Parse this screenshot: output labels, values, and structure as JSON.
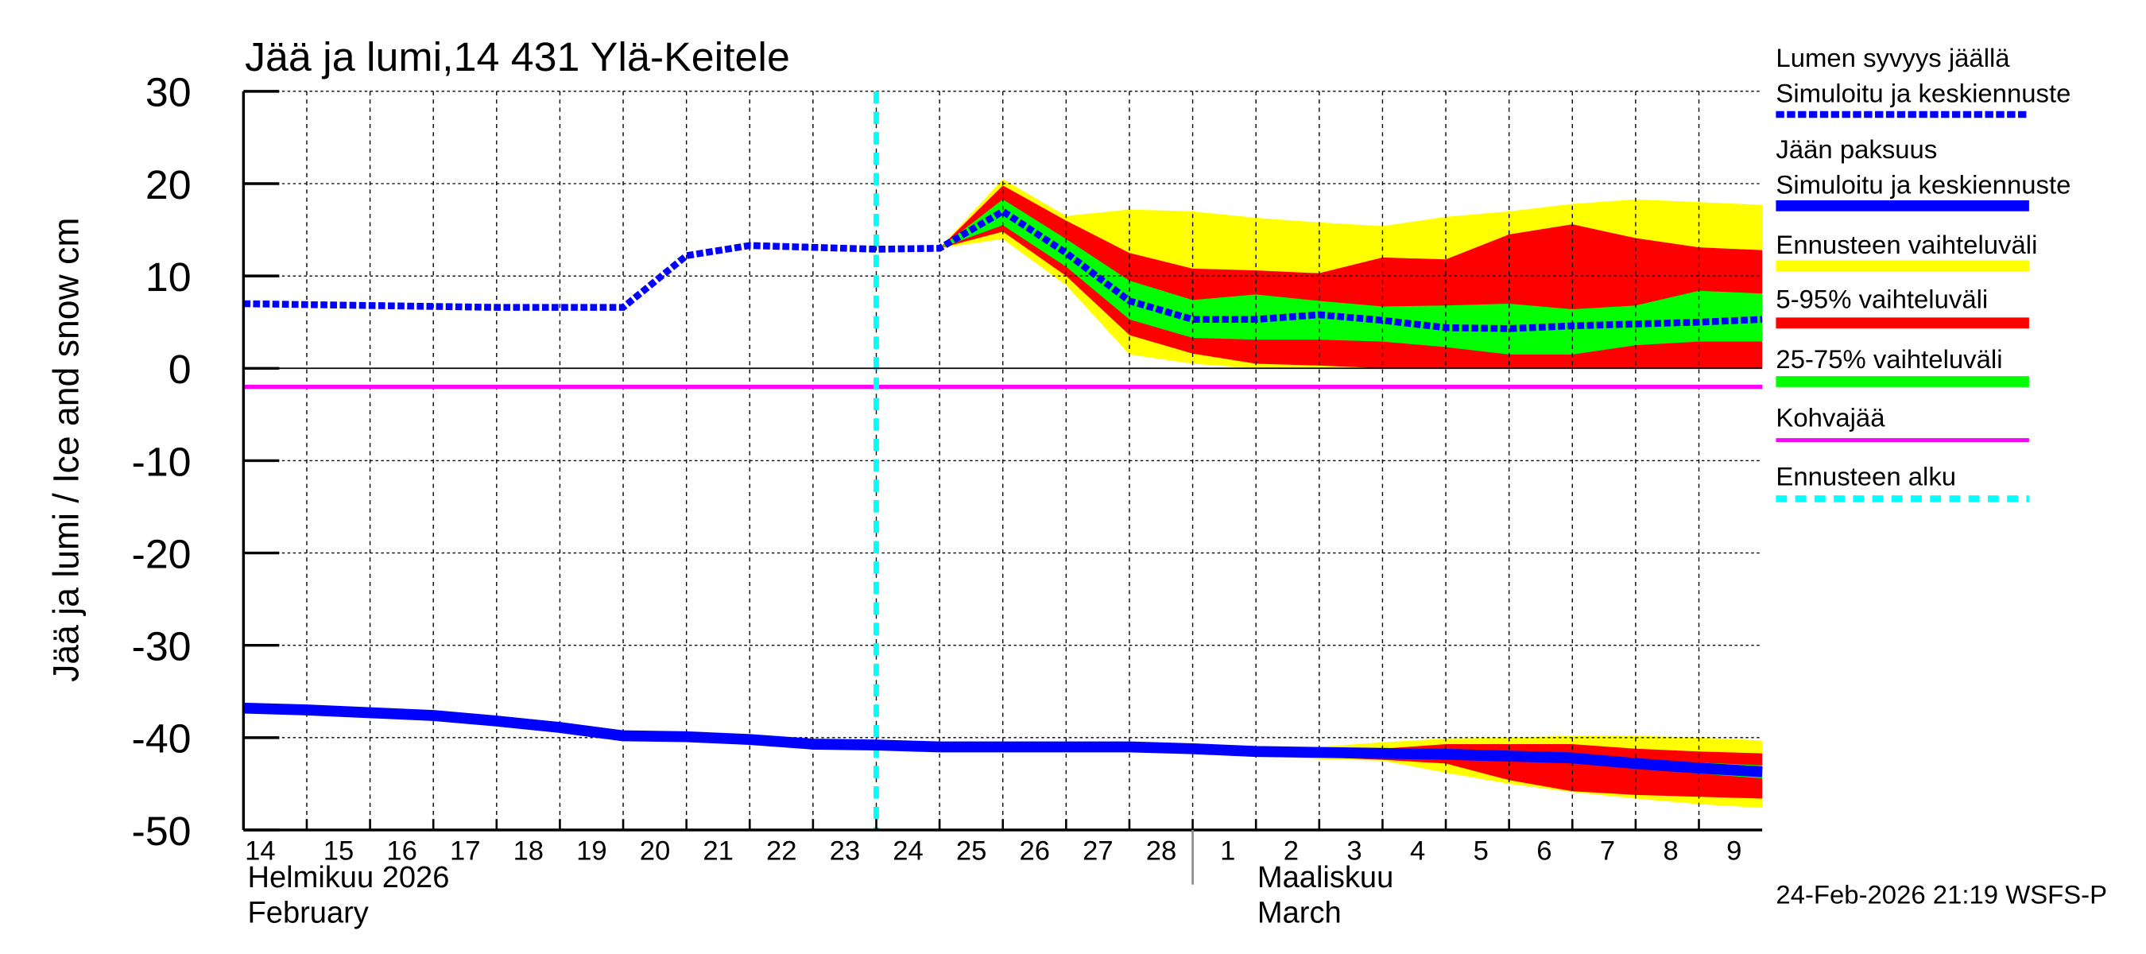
{
  "chart_data": {
    "type": "line",
    "title": "Jää ja lumi,14 431 Ylä-Keitele",
    "ylabel": "Jää ja lumi / Ice and snow    cm",
    "ylim": [
      -50,
      30
    ],
    "yticks": [
      "30",
      "20",
      "10",
      "0",
      "-10",
      "-20",
      "-30",
      "-40",
      "-50"
    ],
    "grid": true,
    "legend_position": "right",
    "x_labels": [
      "14",
      "15",
      "16",
      "17",
      "18",
      "19",
      "20",
      "21",
      "22",
      "23",
      "24",
      "25",
      "26",
      "27",
      "28",
      "1",
      "2",
      "3",
      "4",
      "5",
      "6",
      "7",
      "8",
      "9"
    ],
    "x_dates": [
      "2026-02-14",
      "2026-02-15",
      "2026-02-16",
      "2026-02-17",
      "2026-02-18",
      "2026-02-19",
      "2026-02-20",
      "2026-02-21",
      "2026-02-22",
      "2026-02-23",
      "2026-02-24",
      "2026-02-25",
      "2026-02-26",
      "2026-02-27",
      "2026-02-28",
      "2026-03-01",
      "2026-03-02",
      "2026-03-03",
      "2026-03-04",
      "2026-03-05",
      "2026-03-06",
      "2026-03-07",
      "2026-03-08",
      "2026-03-09",
      "2026-03-10"
    ],
    "month_labels": [
      {
        "fi": "Helmikuu  2026",
        "en": "February"
      },
      {
        "fi": "Maaliskuu",
        "en": "March"
      }
    ],
    "forecast_start": "2026-02-24",
    "kohvajaa_level": -2,
    "snow_depth": [
      7,
      6.9,
      6.8,
      6.7,
      6.6,
      6.6,
      6.6,
      12.2,
      13.3,
      13.1,
      12.9,
      13,
      17,
      12.5,
      7.3,
      5.3,
      5.3,
      5.8,
      5.2,
      4.4,
      4.3,
      4.6,
      4.8,
      5,
      5.3
    ],
    "ice_thickness": [
      -36.8,
      -37,
      -37.3,
      -37.6,
      -38.2,
      -38.9,
      -39.8,
      -39.9,
      -40.2,
      -40.7,
      -40.8,
      -41,
      -41,
      -41,
      -41,
      -41.2,
      -41.5,
      -41.6,
      -41.7,
      -41.8,
      -42,
      -42.2,
      -42.8,
      -43.3,
      -43.7
    ],
    "snow_bands": {
      "start": "2026-02-25",
      "range_max": [
        13,
        20.5,
        16.5,
        17.2,
        17,
        16.3,
        15.8,
        15.4,
        16.4,
        17,
        17.8,
        18.3,
        18,
        17.7
      ],
      "range_min": [
        13,
        14,
        9,
        1.5,
        0.5,
        0,
        0,
        0,
        0,
        0,
        0,
        0,
        0,
        0
      ],
      "p95": [
        13,
        19.8,
        16,
        12.5,
        10.8,
        10.6,
        10.3,
        12,
        11.8,
        14.5,
        15.6,
        14.1,
        13.1,
        12.8
      ],
      "p5": [
        13,
        14.8,
        10,
        3.6,
        1.6,
        0.5,
        0.3,
        0,
        0,
        0,
        0,
        0,
        0,
        0
      ],
      "p75": [
        13,
        18.3,
        14,
        9.5,
        7.4,
        8,
        7.3,
        6.7,
        6.8,
        7,
        6.4,
        6.8,
        8.4,
        8.1
      ],
      "p25": [
        13,
        15.5,
        11,
        5.3,
        3.3,
        3.1,
        3.1,
        2.9,
        2.3,
        1.5,
        1.5,
        2.5,
        2.9,
        2.9
      ]
    },
    "ice_bands": {
      "start": "2026-02-28",
      "range_max": [
        -41,
        -41.2,
        -41.3,
        -41,
        -40.5,
        -40.1,
        -40,
        -39.8,
        -39.8,
        -40,
        -40.3
      ],
      "range_min": [
        -41,
        -41.4,
        -42,
        -42.3,
        -42.5,
        -43.8,
        -45,
        -45.9,
        -46.6,
        -47.2,
        -47.6
      ],
      "p95": [
        -41,
        -41.2,
        -41.4,
        -41.5,
        -41.2,
        -40.7,
        -40.7,
        -40.7,
        -41.2,
        -41.5,
        -41.7
      ],
      "p5": [
        -41,
        -41.3,
        -41.9,
        -42.1,
        -42.4,
        -42.8,
        -44.6,
        -45.8,
        -46.2,
        -46.4,
        -46.6
      ],
      "p75": [
        -41,
        -41.2,
        -41.5,
        -41.6,
        -41.6,
        -41.6,
        -41.7,
        -41.8,
        -42.3,
        -42.7,
        -43
      ],
      "p25": [
        -41,
        -41.2,
        -41.5,
        -41.7,
        -41.8,
        -42,
        -42.3,
        -42.6,
        -43.3,
        -43.9,
        -44.4
      ]
    },
    "legend": [
      {
        "title": "Lumen syvyys jäällä",
        "label": "Simuloitu ja keskiennuste",
        "color": "#0000ff",
        "style": "dashed"
      },
      {
        "title": "Jään paksuus",
        "label": "Simuloitu ja keskiennuste",
        "color": "#0000ff",
        "style": "solid"
      },
      {
        "label": "Ennusteen vaihteluväli",
        "color": "#ffff00",
        "style": "band"
      },
      {
        "label": "5-95% vaihteluväli",
        "color": "#ff0000",
        "style": "band"
      },
      {
        "label": "25-75% vaihteluväli",
        "color": "#00ff00",
        "style": "band"
      },
      {
        "label": "Kohvajää",
        "color": "#ff00ff",
        "style": "solid"
      },
      {
        "label": "Ennusteen alku",
        "color": "#00ffff",
        "style": "dotted"
      }
    ],
    "timestamp": "24-Feb-2026 21:19 WSFS-P"
  }
}
